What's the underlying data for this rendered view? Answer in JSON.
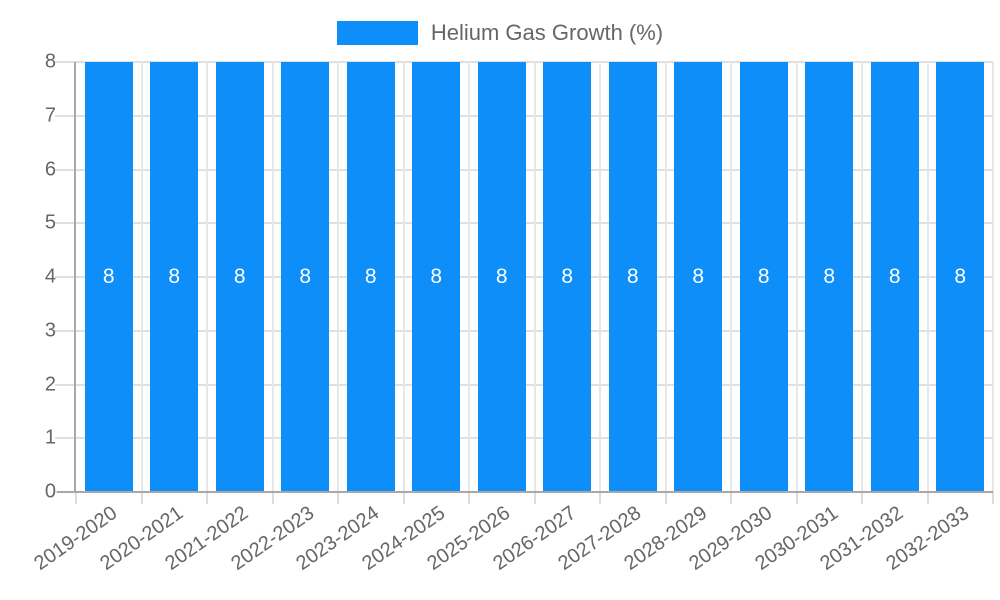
{
  "legend": {
    "label": "Helium Gas Growth (%)",
    "swatch_color": "#0d8ef8"
  },
  "chart_data": {
    "type": "bar",
    "title": "Helium Gas Growth (%)",
    "categories": [
      "2019-2020",
      "2020-2021",
      "2021-2022",
      "2022-2023",
      "2023-2024",
      "2024-2025",
      "2025-2026",
      "2026-2027",
      "2027-2028",
      "2028-2029",
      "2029-2030",
      "2030-2031",
      "2031-2032",
      "2032-2033"
    ],
    "values": [
      8,
      8,
      8,
      8,
      8,
      8,
      8,
      8,
      8,
      8,
      8,
      8,
      8,
      8
    ],
    "xlabel": "",
    "ylabel": "",
    "ylim": [
      0,
      8
    ],
    "yticks": [
      0,
      1,
      2,
      3,
      4,
      5,
      6,
      7,
      8
    ],
    "grid": true,
    "legend_position": "top",
    "bar_color": "#0d8ef8",
    "bar_label_color": "#ffffff",
    "axis_text_color": "#666666",
    "gridline_color": "#e0e0e0",
    "axis_line_color": "#a8a8a8"
  }
}
